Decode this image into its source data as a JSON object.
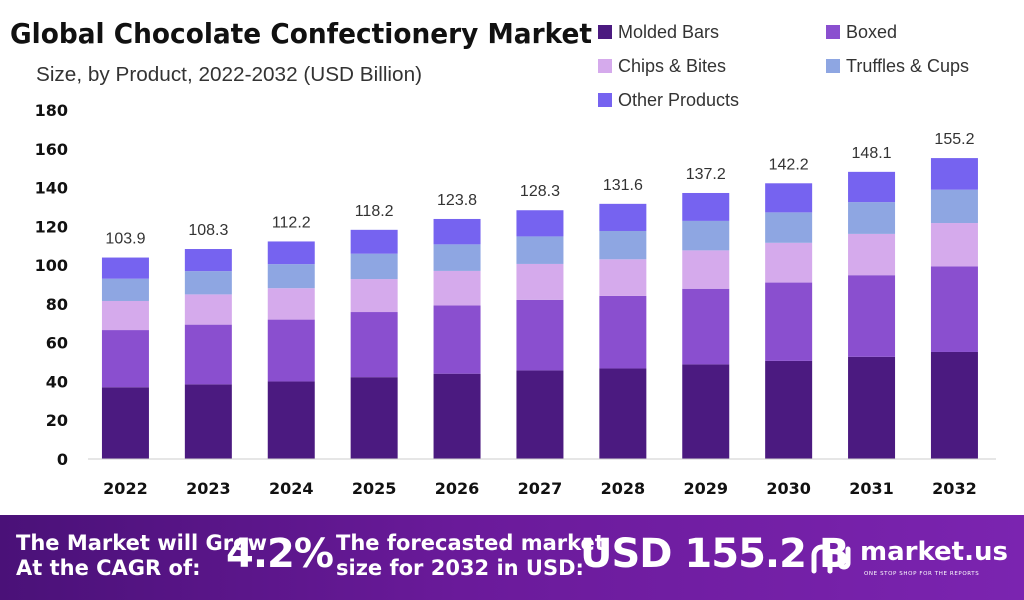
{
  "chart_data": {
    "type": "bar",
    "stacked": true,
    "title": "Global Chocolate Confectionery  Market",
    "subtitle": "Size, by Product, 2022-2032 (USD Billion)",
    "categories": [
      "2022",
      "2023",
      "2024",
      "2025",
      "2026",
      "2027",
      "2028",
      "2029",
      "2030",
      "2031",
      "2032"
    ],
    "totals": [
      103.9,
      108.3,
      112.2,
      118.2,
      123.8,
      128.3,
      131.6,
      137.2,
      142.2,
      148.1,
      155.2
    ],
    "series": [
      {
        "name": "Molded Bars",
        "color": "#4b1a80",
        "values": [
          37.0,
          38.5,
          40.0,
          42.2,
          44.0,
          45.7,
          46.7,
          48.8,
          50.6,
          52.7,
          55.2
        ]
      },
      {
        "name": "Boxed",
        "color": "#8a4fcf",
        "values": [
          29.5,
          30.8,
          31.9,
          33.6,
          35.2,
          36.4,
          37.4,
          39.0,
          40.4,
          42.1,
          44.1
        ]
      },
      {
        "name": "Chips & Bites",
        "color": "#d5aaec",
        "values": [
          15.0,
          15.6,
          16.2,
          17.0,
          17.8,
          18.5,
          18.9,
          19.8,
          20.5,
          21.3,
          22.4
        ]
      },
      {
        "name": "Truffles & Cups",
        "color": "#8ea6e2",
        "values": [
          11.5,
          12.0,
          12.4,
          13.1,
          13.7,
          14.2,
          14.6,
          15.2,
          15.7,
          16.4,
          17.2
        ]
      },
      {
        "name": "Other Products",
        "color": "#7663f0",
        "values": [
          10.9,
          11.4,
          11.7,
          12.3,
          13.1,
          13.5,
          14.0,
          14.4,
          15.0,
          15.6,
          16.3
        ]
      }
    ],
    "ylim": [
      0,
      180
    ],
    "yticks": [
      0,
      20,
      40,
      60,
      80,
      100,
      120,
      140,
      160,
      180
    ],
    "xlabel": "",
    "ylabel": "",
    "grid": false,
    "legend": "top-right"
  },
  "footer": {
    "cagr_label_line1": "The Market will Grow",
    "cagr_label_line2": "At the CAGR of:",
    "cagr_value": "4.2%",
    "forecast_label_line1": "The forecasted market",
    "forecast_label_line2": "size for 2032 in USD:",
    "forecast_value": "USD 155.2 B",
    "brand_name": "market.us",
    "brand_tagline": "ONE STOP SHOP FOR THE REPORTS"
  }
}
